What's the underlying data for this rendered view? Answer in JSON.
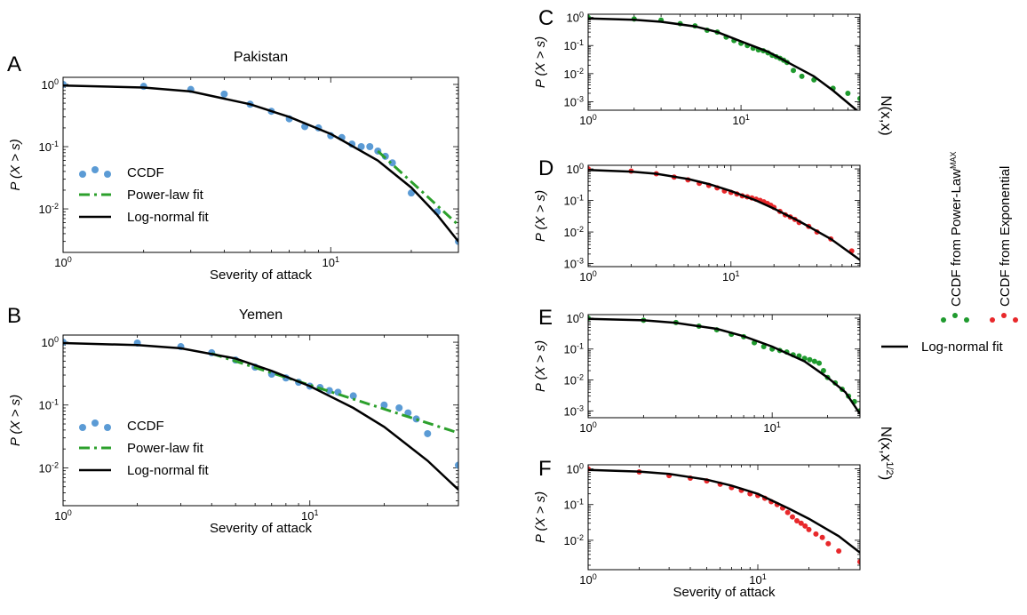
{
  "colors": {
    "ccdf_blue": "#5b9bd5",
    "power_law_green": "#2ca02c",
    "lognormal_black": "#000000",
    "green_points": "#1f9a2e",
    "red_points": "#e8282b"
  },
  "side_labels": {
    "nxx": "N(x,x)",
    "nxsqrt": "N(x,x",
    "nxsqrt_sup": "1/2",
    "nxsqrt_close": ")"
  },
  "side_legend": {
    "green_label": "CCDF from Power-Law",
    "green_sup": "MAX",
    "red_label": "CCDF from Exponential",
    "lognormal_label": "Log-normal fit"
  },
  "chart_data": [
    {
      "panel": "A",
      "type": "scatter",
      "title": "Pakistan",
      "xlabel": "Severity of attack",
      "ylabel": "P (X > s)",
      "xscale": "log",
      "yscale": "log",
      "xlim": [
        1,
        30
      ],
      "ylim": [
        0.002,
        1.3
      ],
      "xticks": [
        {
          "v": 1,
          "base": "10",
          "exp": "0"
        },
        {
          "v": 10,
          "base": "10",
          "exp": "1"
        }
      ],
      "yticks": [
        {
          "v": 1,
          "base": "10",
          "exp": "0"
        },
        {
          "v": 0.1,
          "base": "10",
          "exp": "-1"
        },
        {
          "v": 0.01,
          "base": "10",
          "exp": "-2"
        }
      ],
      "legend": {
        "position": "lower-left",
        "entries": [
          "CCDF",
          "Power-law fit",
          "Log-normal fit"
        ]
      },
      "series": [
        {
          "name": "CCDF",
          "style": "points",
          "color": "#5b9bd5",
          "x": [
            1,
            2,
            3,
            4,
            5,
            6,
            7,
            8,
            9,
            10,
            11,
            12,
            13,
            14,
            15,
            16,
            17,
            20,
            25,
            30
          ],
          "y": [
            1.0,
            0.93,
            0.83,
            0.7,
            0.48,
            0.37,
            0.28,
            0.21,
            0.2,
            0.15,
            0.14,
            0.11,
            0.1,
            0.1,
            0.085,
            0.07,
            0.055,
            0.018,
            0.009,
            0.003
          ]
        },
        {
          "name": "Power-law fit",
          "style": "dashdot",
          "color": "#2ca02c",
          "x": [
            15,
            30
          ],
          "y": [
            0.085,
            0.0055
          ]
        },
        {
          "name": "Log-normal fit",
          "style": "line",
          "color": "#000000",
          "x": [
            1,
            2,
            3,
            5,
            7,
            10,
            15,
            20,
            25,
            30
          ],
          "y": [
            0.96,
            0.89,
            0.77,
            0.48,
            0.3,
            0.16,
            0.06,
            0.022,
            0.008,
            0.003
          ]
        }
      ]
    },
    {
      "panel": "B",
      "type": "scatter",
      "title": "Yemen",
      "xlabel": "Severity of attack",
      "ylabel": "P (X > s)",
      "xscale": "log",
      "yscale": "log",
      "xlim": [
        1,
        40
      ],
      "ylim": [
        0.0025,
        1.3
      ],
      "xticks": [
        {
          "v": 1,
          "base": "10",
          "exp": "0"
        },
        {
          "v": 10,
          "base": "10",
          "exp": "1"
        }
      ],
      "yticks": [
        {
          "v": 1,
          "base": "10",
          "exp": "0"
        },
        {
          "v": 0.1,
          "base": "10",
          "exp": "-1"
        },
        {
          "v": 0.01,
          "base": "10",
          "exp": "-2"
        }
      ],
      "legend": {
        "position": "lower-left",
        "entries": [
          "CCDF",
          "Power-law fit",
          "Log-normal fit"
        ]
      },
      "series": [
        {
          "name": "CCDF",
          "style": "points",
          "color": "#5b9bd5",
          "x": [
            1,
            2,
            3,
            4,
            5,
            6,
            7,
            8,
            9,
            10,
            11,
            12,
            13,
            15,
            20,
            23,
            25,
            27,
            30,
            40
          ],
          "y": [
            1.0,
            0.97,
            0.85,
            0.68,
            0.52,
            0.4,
            0.31,
            0.27,
            0.23,
            0.2,
            0.19,
            0.17,
            0.16,
            0.14,
            0.1,
            0.09,
            0.075,
            0.06,
            0.035,
            0.011
          ]
        },
        {
          "name": "Power-law fit",
          "style": "dashdot",
          "color": "#2ca02c",
          "x": [
            4,
            40
          ],
          "y": [
            0.66,
            0.036
          ]
        },
        {
          "name": "Log-normal fit",
          "style": "line",
          "color": "#000000",
          "x": [
            1,
            2,
            3,
            5,
            7,
            10,
            15,
            20,
            30,
            40
          ],
          "y": [
            0.97,
            0.9,
            0.8,
            0.55,
            0.35,
            0.2,
            0.09,
            0.045,
            0.013,
            0.0045
          ]
        }
      ]
    },
    {
      "panel": "C",
      "type": "scatter",
      "xlabel": "",
      "ylabel": "P (X > s)",
      "xscale": "log",
      "yscale": "log",
      "xlim": [
        1,
        60
      ],
      "ylim": [
        0.0005,
        1.3
      ],
      "xticks": [
        {
          "v": 1,
          "base": "10",
          "exp": "0"
        },
        {
          "v": 10,
          "base": "10",
          "exp": "1"
        }
      ],
      "yticks": [
        {
          "v": 1,
          "base": "10",
          "exp": "0"
        },
        {
          "v": 0.1,
          "base": "10",
          "exp": "-1"
        },
        {
          "v": 0.01,
          "base": "10",
          "exp": "-2"
        },
        {
          "v": 0.001,
          "base": "10",
          "exp": "-3"
        }
      ],
      "series": [
        {
          "name": "CCDF from Power-Law MAX",
          "style": "points",
          "color": "#1f9a2e",
          "x": [
            1,
            2,
            3,
            4,
            5,
            6,
            7,
            8,
            9,
            10,
            11,
            12,
            13,
            14,
            15,
            16,
            17,
            18,
            19,
            20,
            22,
            25,
            30,
            40,
            50,
            60
          ],
          "y": [
            1.0,
            0.88,
            0.8,
            0.6,
            0.5,
            0.35,
            0.3,
            0.2,
            0.15,
            0.12,
            0.1,
            0.08,
            0.07,
            0.065,
            0.055,
            0.045,
            0.04,
            0.035,
            0.03,
            0.025,
            0.013,
            0.008,
            0.006,
            0.003,
            0.002,
            0.0013
          ]
        },
        {
          "name": "Log-normal fit",
          "style": "line",
          "color": "#000000",
          "x": [
            1,
            2,
            3,
            5,
            7,
            10,
            15,
            20,
            30,
            40,
            60
          ],
          "y": [
            0.92,
            0.82,
            0.7,
            0.48,
            0.3,
            0.14,
            0.06,
            0.026,
            0.008,
            0.0025,
            0.0004
          ]
        }
      ]
    },
    {
      "panel": "D",
      "type": "scatter",
      "xlabel": "",
      "ylabel": "P (X > s)",
      "xscale": "log",
      "yscale": "log",
      "xlim": [
        1,
        80
      ],
      "ylim": [
        0.0008,
        1.3
      ],
      "xticks": [
        {
          "v": 1,
          "base": "10",
          "exp": "0"
        },
        {
          "v": 10,
          "base": "10",
          "exp": "1"
        }
      ],
      "yticks": [
        {
          "v": 1,
          "base": "10",
          "exp": "0"
        },
        {
          "v": 0.1,
          "base": "10",
          "exp": "-1"
        },
        {
          "v": 0.01,
          "base": "10",
          "exp": "-2"
        },
        {
          "v": 0.001,
          "base": "10",
          "exp": "-3"
        }
      ],
      "series": [
        {
          "name": "CCDF from Exponential",
          "style": "points",
          "color": "#e8282b",
          "x": [
            1,
            2,
            3,
            4,
            5,
            6,
            7,
            8,
            9,
            10,
            11,
            12,
            13,
            14,
            15,
            16,
            17,
            18,
            19,
            20,
            22,
            24,
            26,
            28,
            30,
            35,
            40,
            50,
            70
          ],
          "y": [
            1.0,
            0.85,
            0.7,
            0.55,
            0.45,
            0.35,
            0.3,
            0.25,
            0.2,
            0.18,
            0.16,
            0.14,
            0.13,
            0.12,
            0.11,
            0.1,
            0.09,
            0.08,
            0.07,
            0.06,
            0.045,
            0.035,
            0.03,
            0.025,
            0.02,
            0.015,
            0.01,
            0.006,
            0.0025
          ]
        },
        {
          "name": "Log-normal fit",
          "style": "line",
          "color": "#000000",
          "x": [
            1,
            2,
            3,
            5,
            7,
            10,
            15,
            20,
            30,
            50,
            80
          ],
          "y": [
            0.92,
            0.82,
            0.7,
            0.48,
            0.33,
            0.2,
            0.1,
            0.055,
            0.022,
            0.006,
            0.0013
          ]
        }
      ]
    },
    {
      "panel": "E",
      "type": "scatter",
      "xlabel": "",
      "ylabel": "P (X > s)",
      "xscale": "log",
      "yscale": "log",
      "xlim": [
        1,
        30
      ],
      "ylim": [
        0.0006,
        1.3
      ],
      "xticks": [
        {
          "v": 1,
          "base": "10",
          "exp": "0"
        },
        {
          "v": 10,
          "base": "10",
          "exp": "1"
        }
      ],
      "yticks": [
        {
          "v": 1,
          "base": "10",
          "exp": "0"
        },
        {
          "v": 0.1,
          "base": "10",
          "exp": "-1"
        },
        {
          "v": 0.01,
          "base": "10",
          "exp": "-2"
        },
        {
          "v": 0.001,
          "base": "10",
          "exp": "-3"
        }
      ],
      "series": [
        {
          "name": "CCDF from Power-Law MAX",
          "style": "points",
          "color": "#1f9a2e",
          "x": [
            1,
            2,
            3,
            4,
            5,
            6,
            7,
            8,
            9,
            10,
            11,
            12,
            13,
            14,
            15,
            16,
            17,
            18,
            19,
            20,
            22,
            24,
            26,
            28,
            30
          ],
          "y": [
            1.0,
            0.85,
            0.72,
            0.55,
            0.42,
            0.3,
            0.25,
            0.16,
            0.12,
            0.1,
            0.09,
            0.08,
            0.065,
            0.06,
            0.05,
            0.045,
            0.04,
            0.035,
            0.02,
            0.012,
            0.008,
            0.005,
            0.003,
            0.002,
            0.001
          ]
        },
        {
          "name": "Log-normal fit",
          "style": "line",
          "color": "#000000",
          "x": [
            1,
            2,
            3,
            5,
            7,
            10,
            15,
            20,
            25,
            30
          ],
          "y": [
            0.95,
            0.85,
            0.7,
            0.45,
            0.26,
            0.12,
            0.04,
            0.012,
            0.004,
            0.0008
          ]
        }
      ]
    },
    {
      "panel": "F",
      "type": "scatter",
      "xlabel": "Severity of attack",
      "ylabel": "P (X > s)",
      "xscale": "log",
      "yscale": "log",
      "xlim": [
        1,
        40
      ],
      "ylim": [
        0.0015,
        1.3
      ],
      "xticks": [
        {
          "v": 1,
          "base": "10",
          "exp": "0"
        },
        {
          "v": 10,
          "base": "10",
          "exp": "1"
        }
      ],
      "yticks": [
        {
          "v": 1,
          "base": "10",
          "exp": "0"
        },
        {
          "v": 0.1,
          "base": "10",
          "exp": "-1"
        },
        {
          "v": 0.01,
          "base": "10",
          "exp": "-2"
        }
      ],
      "series": [
        {
          "name": "CCDF from Exponential",
          "style": "points",
          "color": "#e8282b",
          "x": [
            1,
            2,
            3,
            4,
            5,
            6,
            7,
            8,
            9,
            10,
            11,
            12,
            13,
            14,
            15,
            16,
            17,
            18,
            19,
            20,
            22,
            24,
            26,
            30,
            40
          ],
          "y": [
            1.0,
            0.82,
            0.65,
            0.55,
            0.46,
            0.37,
            0.3,
            0.25,
            0.2,
            0.18,
            0.15,
            0.12,
            0.1,
            0.08,
            0.06,
            0.045,
            0.035,
            0.03,
            0.025,
            0.02,
            0.015,
            0.012,
            0.008,
            0.005,
            0.0025
          ]
        },
        {
          "name": "Log-normal fit",
          "style": "line",
          "color": "#000000",
          "x": [
            1,
            2,
            3,
            5,
            7,
            10,
            15,
            20,
            30,
            40
          ],
          "y": [
            0.93,
            0.84,
            0.72,
            0.5,
            0.34,
            0.2,
            0.08,
            0.04,
            0.013,
            0.0045
          ]
        }
      ]
    }
  ]
}
